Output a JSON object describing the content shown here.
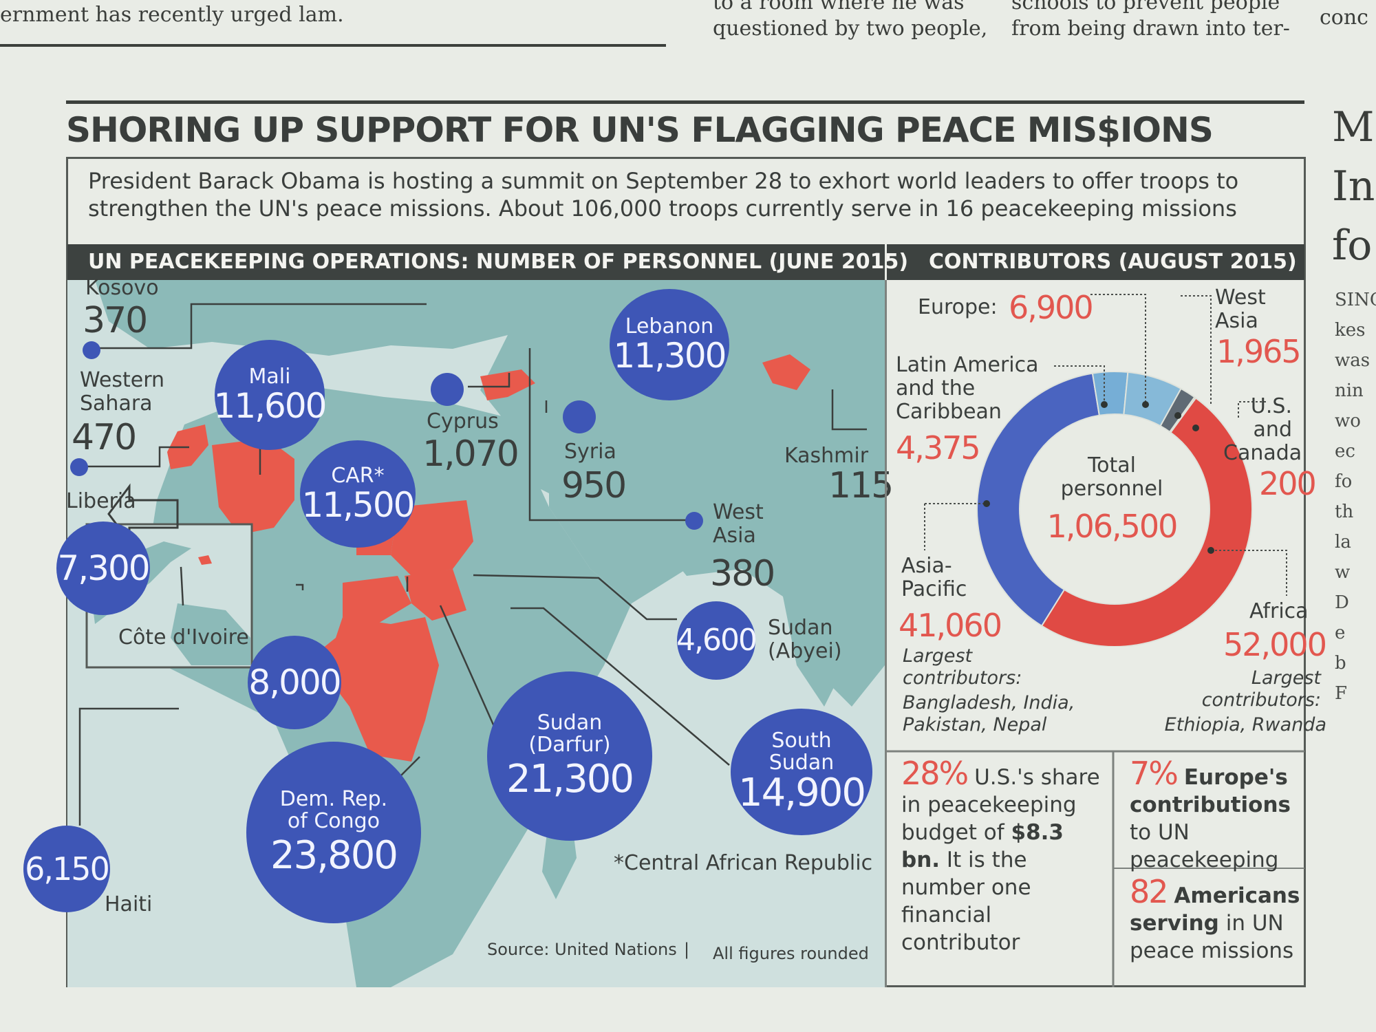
{
  "newspaper": {
    "fragment_left": "ernment has recently urged    lam.",
    "fragment_mid_top": "to a room where he was",
    "fragment_mid": "questioned by two people,",
    "fragment_right_top": "schools to prevent people",
    "fragment_right": "from being drawn into ter-",
    "fragment_far": "conc",
    "side_m": "M",
    "side_in": "In",
    "side_fo": "fo",
    "side_col": [
      "SING",
      "kes",
      "was",
      "nin",
      "wo",
      "ec",
      "fo",
      "th",
      "la",
      "w",
      "D",
      "e",
      "b",
      "F"
    ]
  },
  "headline": "SHORING UP SUPPORT FOR UN'S FLAGGING PEACE MIS$IONS",
  "intro": "President Barack Obama is hosting a summit on September 28 to exhort world leaders to offer troops to strengthen the UN's peace missions. About 106,000 troops currently serve in 16 peacekeeping missions",
  "map_section_title": "UN PEACEKEEPING OPERATIONS: NUMBER OF PERSONNEL (JUNE 2015)",
  "contrib_section_title": "CONTRIBUTORS (AUGUST 2015)",
  "colors": {
    "bubble": "#3e56b6",
    "mission_country": "#e85a4c",
    "land": "#8cbab8",
    "sea": "#cfe0de",
    "accent_red": "#e2574f",
    "dark_bar": "#3d4240"
  },
  "chart_data": [
    {
      "type": "bubble-map",
      "title": "UN PEACEKEEPING OPERATIONS: NUMBER OF PERSONNEL (JUNE 2015)",
      "missions": [
        {
          "name": "Kosovo",
          "value": "370"
        },
        {
          "name": "Western Sahara",
          "value": "470"
        },
        {
          "name": "Mali",
          "value": "11,600"
        },
        {
          "name": "Liberia",
          "value": "7,300"
        },
        {
          "name": "Côte d'Ivoire",
          "value": "8,000"
        },
        {
          "name": "Haiti",
          "value": "6,150"
        },
        {
          "name": "CAR*",
          "value": "11,500"
        },
        {
          "name": "Dem. Rep. of Congo",
          "value": "23,800"
        },
        {
          "name": "Cyprus",
          "value": "1,070"
        },
        {
          "name": "Syria",
          "value": "950"
        },
        {
          "name": "Lebanon",
          "value": "11,300"
        },
        {
          "name": "West Asia",
          "value": "380"
        },
        {
          "name": "Kashmir",
          "value": "115"
        },
        {
          "name": "Sudan (Abyei)",
          "value": "4,600"
        },
        {
          "name": "Sudan (Darfur)",
          "value": "21,300"
        },
        {
          "name": "South Sudan",
          "value": "14,900"
        }
      ],
      "footnote": "*Central African Republic",
      "source": "Source: United Nations",
      "note": "All figures rounded"
    },
    {
      "type": "pie",
      "title": "CONTRIBUTORS (AUGUST 2015)",
      "center_label": "Total personnel",
      "center_value": "1,06,500",
      "slices": [
        {
          "name": "Africa",
          "value": 52000,
          "label": "52,000",
          "color": "#e04a44",
          "desc": "Largest contributors: Ethiopia, Rwanda"
        },
        {
          "name": "Asia-Pacific",
          "value": 41060,
          "label": "41,060",
          "color": "#4a64c0",
          "desc": "Largest contributors: Bangladesh, India, Pakistan, Nepal"
        },
        {
          "name": "Latin America and the Caribbean",
          "value": 4375,
          "label": "4,375",
          "color": "#76aed6",
          "desc": ""
        },
        {
          "name": "Europe",
          "value": 6900,
          "label": "6,900",
          "color": "#86b9d8",
          "desc": ""
        },
        {
          "name": "West Asia",
          "value": 1965,
          "label": "1,965",
          "color": "#5f6a74",
          "desc": ""
        },
        {
          "name": "U.S. and Canada",
          "value": 200,
          "label": "200",
          "color": "#f0a27a",
          "desc": ""
        }
      ]
    }
  ],
  "contrib_labels": {
    "europe": "Europe:",
    "west_asia": "West Asia",
    "latam": "Latin America and the Caribbean",
    "us_canada": "U.S. and Canada",
    "asia_pacific": "Asia-Pacific",
    "africa": "Africa",
    "largest": "Largest contributors:",
    "asia_list": "Bangladesh, India, Pakistan, Nepal",
    "africa_list": "Ethiopia, Rwanda"
  },
  "facts": {
    "us_pct": "28%",
    "us_text1": "U.S.'s share in peacekeeping budget of",
    "us_bold": "$8.3 bn.",
    "us_text2": "It is the number one financial contributor",
    "eu_pct": "7%",
    "eu_bold": "Europe's contributions",
    "eu_text": "to UN peacekeeping",
    "am_num": "82",
    "am_bold": "Americans serving",
    "am_text": "in UN peace missions"
  }
}
